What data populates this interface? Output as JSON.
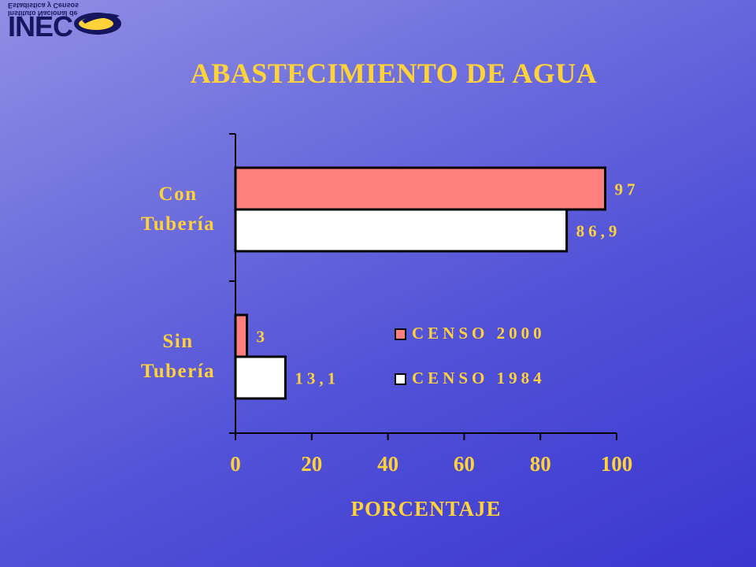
{
  "logo": {
    "text": "INEC",
    "mirrored_lines": [
      "Instituto Nacional de",
      "Estadística y Censos"
    ]
  },
  "title": "ABASTECIMIENTO DE AGUA",
  "colors": {
    "title": "#ffd23a",
    "labels": "#ffd23a",
    "censo_2000": "#ff7f7f",
    "censo_1984": "#ffffff",
    "axis": "#000000"
  },
  "chart_data": {
    "type": "bar",
    "orientation": "horizontal",
    "categories": [
      "Con Tubería",
      "Sin Tubería"
    ],
    "category_lines": [
      [
        "Con",
        "Tubería"
      ],
      [
        "Sin",
        "Tubería"
      ]
    ],
    "series": [
      {
        "name": "CENSO 2000",
        "values": [
          97,
          3
        ],
        "labels": [
          "97",
          "3"
        ],
        "color": "#ff7f7f"
      },
      {
        "name": "CENSO 1984",
        "values": [
          86.9,
          13.1
        ],
        "labels": [
          "86,9",
          "13,1"
        ],
        "color": "#ffffff"
      }
    ],
    "xlabel": "PORCENTAJE",
    "ylabel": "",
    "xlim": [
      0,
      100
    ],
    "xticks": [
      0,
      20,
      40,
      60,
      80,
      100
    ],
    "grid": false,
    "legend_position": "center-right"
  }
}
